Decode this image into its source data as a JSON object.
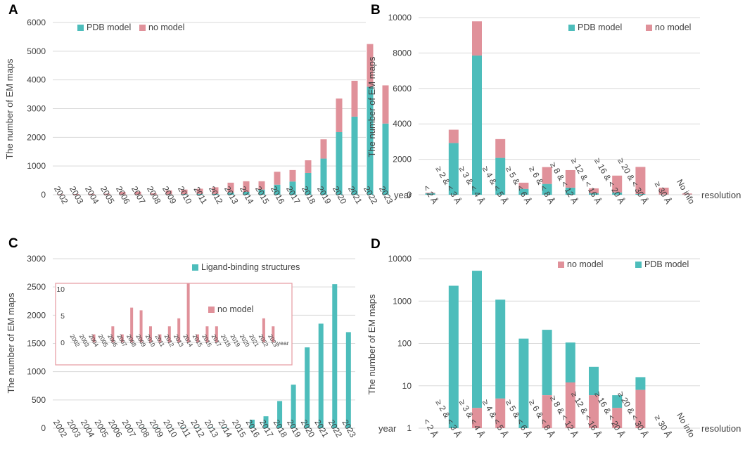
{
  "colors": {
    "pdb_model": "#4dbdbb",
    "no_model": "#e0919a",
    "grid": "#d9d9d9",
    "inset_border": "#e8a0a8"
  },
  "chart_data": [
    {
      "id": "A",
      "letter": "A",
      "type": "bar",
      "stacked": true,
      "title": "",
      "ylabel": "The number of EM maps",
      "xlabel": "year",
      "ylim": [
        0,
        6000
      ],
      "yticks": [
        0,
        1000,
        2000,
        3000,
        4000,
        5000,
        6000
      ],
      "legend": "top-left",
      "categories": [
        "2002",
        "2003",
        "2004",
        "2005",
        "2006",
        "2007",
        "2008",
        "2009",
        "2010",
        "2011",
        "2012",
        "2013",
        "2014",
        "2015",
        "2016",
        "2017",
        "2018",
        "2019",
        "2020",
        "2021",
        "2022",
        "2023"
      ],
      "series": [
        {
          "name": "PDB model",
          "color_key": "pdb_model",
          "values": [
            0,
            0,
            2,
            3,
            5,
            5,
            3,
            10,
            20,
            30,
            30,
            80,
            100,
            180,
            350,
            460,
            760,
            1260,
            2180,
            2720,
            3760,
            2480
          ]
        },
        {
          "name": "no model",
          "color_key": "no_model",
          "values": [
            15,
            25,
            28,
            35,
            90,
            100,
            50,
            140,
            160,
            180,
            230,
            340,
            370,
            290,
            450,
            400,
            440,
            670,
            1170,
            1250,
            1490,
            1330
          ]
        }
      ]
    },
    {
      "id": "B",
      "letter": "B",
      "type": "bar",
      "stacked": true,
      "title": "",
      "ylabel": "The number of EM maps",
      "xlabel": "resolution",
      "ylim": [
        0,
        10000
      ],
      "yticks": [
        0,
        2000,
        4000,
        6000,
        8000,
        10000
      ],
      "legend": "top-right",
      "categories": [
        "< 2 Å",
        "≥ 2 & < 3 Å",
        "≥ 3 & < 4 Å",
        "≥ 4 & < 5 Å",
        "≥ 5 & < 6 Å",
        "≥ 6 & < 8 Å",
        "≥ 8 & < 12 Å",
        "≥ 12 & < 16 Å",
        "≥ 16 & < 20 Å",
        "≥ 20 & < 30 Å",
        "≥ 30 Å",
        "No info"
      ],
      "series": [
        {
          "name": "PDB model",
          "color_key": "pdb_model",
          "values": [
            80,
            2920,
            7860,
            2080,
            330,
            610,
            400,
            90,
            130,
            40,
            10,
            10
          ]
        },
        {
          "name": "no model",
          "color_key": "no_model",
          "values": [
            40,
            750,
            1930,
            1060,
            350,
            950,
            990,
            270,
            950,
            1530,
            390,
            60
          ]
        }
      ]
    },
    {
      "id": "C",
      "letter": "C",
      "type": "bar",
      "stacked": false,
      "title": "",
      "ylabel": "The number of EM maps",
      "xlabel": "year",
      "ylim": [
        0,
        3000
      ],
      "yticks": [
        0,
        500,
        1000,
        1500,
        2000,
        2500,
        3000
      ],
      "legend": "top-right",
      "categories": [
        "2002",
        "2003",
        "2004",
        "2005",
        "2006",
        "2007",
        "2008",
        "2009",
        "2010",
        "2011",
        "2012",
        "2013",
        "2014",
        "2015",
        "2016",
        "2017",
        "2018",
        "2019",
        "2020",
        "2021",
        "2022",
        "2023"
      ],
      "series": [
        {
          "name": "Ligand-binding structures",
          "color_key": "pdb_model",
          "values": [
            0,
            0,
            2,
            2,
            3,
            3,
            5,
            8,
            5,
            8,
            10,
            10,
            15,
            5,
            150,
            210,
            480,
            770,
            1430,
            1850,
            2550,
            1700
          ]
        }
      ],
      "inset": {
        "type": "bar",
        "xlabel": "year",
        "ylim": [
          0,
          10
        ],
        "yticks": [
          0,
          5,
          10
        ],
        "legend": "top-center",
        "categories": [
          "2002",
          "2003",
          "2004",
          "2005",
          "2006",
          "2007",
          "2008",
          "2009",
          "2010",
          "2011",
          "2012",
          "2013",
          "2014",
          "2015",
          "2016",
          "2017",
          "2018",
          "2019",
          "2020",
          "2021",
          "2022",
          "2023"
        ],
        "series": [
          {
            "name": "no model",
            "color_key": "no_model",
            "values": [
              0,
              0,
              1.5,
              0,
              3,
              1.5,
              6.5,
              6,
              3,
              1.5,
              3,
              4.5,
              11,
              1.5,
              3,
              3,
              0,
              0,
              0,
              0,
              4.5,
              3
            ]
          }
        ]
      }
    },
    {
      "id": "D",
      "letter": "D",
      "type": "bar",
      "stacked": true,
      "scale": "log",
      "title": "",
      "ylabel": "The number of EM maps",
      "xlabel": "resolution",
      "ylim": [
        1,
        10000
      ],
      "yticks": [
        1,
        10,
        100,
        1000,
        10000
      ],
      "legend": "top-right",
      "categories": [
        "< 2 Å",
        "≥ 2 & < 3 Å",
        "≥ 3 & < 4 Å",
        "≥ 4 & < 5 Å",
        "≥ 5 & < 6 Å",
        "≥ 6 & < 8 Å",
        "≥ 8 & < 12 Å",
        "≥ 12 & < 16 Å",
        "≥ 16 & < 20 Å",
        "≥ 20 & < 30 Å",
        "≥ 30 Å",
        "No info"
      ],
      "legend_order": [
        "no model",
        "PDB model"
      ],
      "series": [
        {
          "name": "no model",
          "color_key": "no_model",
          "values": [
            null,
            null,
            3,
            5,
            null,
            6,
            12,
            6,
            3,
            8,
            null,
            null
          ]
        },
        {
          "name": "PDB model",
          "color_key": "pdb_model",
          "values": [
            null,
            2300,
            5200,
            1080,
            130,
            210,
            105,
            28,
            6,
            16,
            null,
            null
          ]
        }
      ]
    }
  ]
}
